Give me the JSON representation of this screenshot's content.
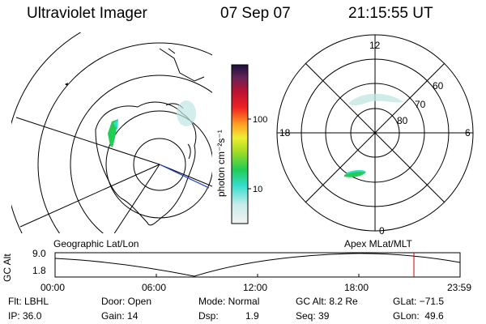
{
  "header": {
    "title": "Ultraviolet Imager",
    "date": "07 Sep 07",
    "time": "21:15:55 UT"
  },
  "colorbar": {
    "unit_label": "photon cm⁻²s⁻¹",
    "ticks": [
      "100",
      "10"
    ]
  },
  "polar_plot": {
    "labels": {
      "mlt_12": "12",
      "mlt_18": "18",
      "mlt_6": "6",
      "mlt_0": "0",
      "lat_60": "60",
      "lat_70": "70",
      "lat_80": "80"
    }
  },
  "map_titles": {
    "left": "Geographic Lat/Lon",
    "right": "Apex MLat/MLT"
  },
  "altitude_plot": {
    "ylabel": "GC Alt",
    "ymax": "9.0",
    "ymin": "1.8",
    "xticks": [
      "00:00",
      "06:00",
      "12:00",
      "18:00",
      "23:59"
    ]
  },
  "info": {
    "flt": "Flt: LBHL",
    "ip": "IP: 36.0",
    "door": "Door: Open",
    "gain": "Gain: 14",
    "mode": "Mode: Normal",
    "dsp_label": "Dsp:",
    "dsp_value": "1.9",
    "gc_alt": "GC Alt: 8.2 Re",
    "seq": "Seq: 39",
    "glat": "GLat: −71.5",
    "glon": "GLon:  49.6"
  },
  "colors": {
    "line": "#000000",
    "marker": "#cc0000",
    "aurora_green": "#22cc55",
    "aurora_cyan": "#33ddcc",
    "aurora_faint": "#bfe6e2"
  }
}
